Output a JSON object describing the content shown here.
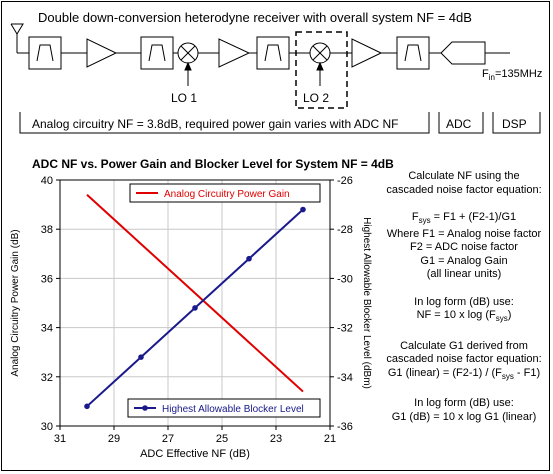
{
  "diagram": {
    "title": "Double down-conversion heterodyne receiver with overall system NF = 4dB",
    "lo1_label": "LO 1",
    "lo2_label": "LO 2",
    "fin_main": "F",
    "fin_sub": "in",
    "fin_value": "=135MHz",
    "analog_box_label": "Analog circuitry NF = 3.8dB, required power gain varies with ADC NF",
    "adc_box_label": "ADC",
    "dsp_box_label": "DSP"
  },
  "explanation": {
    "line1": "Calculate NF using the",
    "line2": "cascaded noise factor equation:",
    "fsys_main": "F",
    "fsys_sub": "sys",
    "fsys_rest": " =  F1 + (F2-1)/G1",
    "line4": "Where F1 = Analog noise factor",
    "line5": "F2 = ADC noise factor",
    "line6": "G1 = Analog Gain",
    "line7": "(all linear units)",
    "line8": "In log form (dB) use:",
    "line9_pre": "NF = 10 x log (F",
    "line9_sub": "sys",
    "line9_post": ")",
    "line10": "Calculate G1 derived from",
    "line11": "cascaded noise factor equation:",
    "line12_pre": "G1 (linear) = (F2-1) / (F",
    "line12_sub": "sys",
    "line12_post": " - F1)",
    "line13": "In log form (dB) use:",
    "line14": "G1 (dB) = 10 x log G1 (linear)"
  },
  "colors": {
    "gain_series": "#e00000",
    "blocker_series": "#1a1a8c"
  },
  "chart_data": {
    "type": "line",
    "title": "ADC NF vs. Power Gain and Blocker Level for System NF = 4dB",
    "xlabel": "ADC Effective NF (dB)",
    "ylabel": "Analog Circuitry Power Gain (dB)",
    "y2label": "Highest Allowable Blocker Level (dBm)",
    "x_reversed": true,
    "xlim": [
      31,
      21
    ],
    "ylim": [
      30,
      40
    ],
    "y2lim": [
      -36,
      -26
    ],
    "x_ticks": [
      31,
      29,
      27,
      25,
      23,
      21
    ],
    "y_ticks": [
      30,
      32,
      34,
      36,
      38,
      40
    ],
    "y2_ticks": [
      -26,
      -28,
      -30,
      -32,
      -34,
      -36
    ],
    "grid": true,
    "series": [
      {
        "name": "Analog Circuitry Power Gain",
        "axis": "left",
        "color": "#e00000",
        "markers": false,
        "x": [
          30,
          28,
          26,
          24,
          22
        ],
        "y": [
          39.4,
          37.4,
          35.4,
          33.4,
          31.4
        ]
      },
      {
        "name": "Highest Allowable Blocker Level",
        "axis": "right",
        "color": "#1a1a8c",
        "markers": true,
        "x": [
          30,
          28,
          26,
          24,
          22
        ],
        "y": [
          -35.2,
          -33.2,
          -31.2,
          -29.2,
          -27.2
        ]
      }
    ],
    "legend": [
      "top-center",
      "bottom-center"
    ]
  }
}
